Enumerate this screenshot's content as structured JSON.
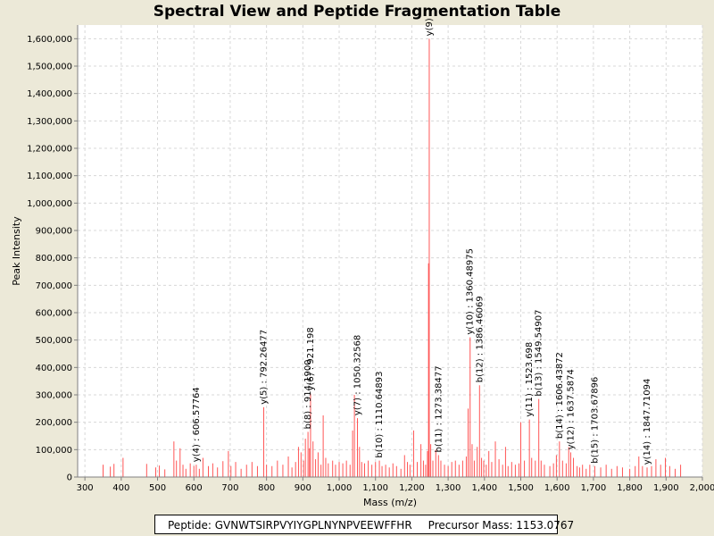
{
  "chart_data": {
    "type": "bar",
    "title": "Spectral View and Peptide Fragmentation Table",
    "xlabel": "Mass (m/z)",
    "ylabel": "Peak Intensity",
    "xlim": [
      280,
      2000
    ],
    "ylim": [
      0,
      1650000
    ],
    "x_ticks": [
      300,
      400,
      500,
      600,
      700,
      800,
      900,
      1000,
      1100,
      1200,
      1300,
      1400,
      1500,
      1600,
      1700,
      1800,
      1900,
      2000
    ],
    "x_tick_labels": [
      "300",
      "400",
      "500",
      "600",
      "700",
      "800",
      "900",
      "1,000",
      "1,100",
      "1,200",
      "1,300",
      "1,400",
      "1,500",
      "1,600",
      "1,700",
      "1,800",
      "1,900",
      "2,000"
    ],
    "y_ticks": [
      0,
      100000,
      200000,
      300000,
      400000,
      500000,
      600000,
      700000,
      800000,
      900000,
      1000000,
      1100000,
      1200000,
      1300000,
      1400000,
      1500000,
      1600000
    ],
    "y_tick_labels": [
      "0",
      "100,000",
      "200,000",
      "300,000",
      "400,000",
      "500,000",
      "600,000",
      "700,000",
      "800,000",
      "900,000",
      "1,000,000",
      "1,100,000",
      "1,200,000",
      "1,300,000",
      "1,400,000",
      "1,500,000",
      "1,600,000"
    ],
    "grid": true,
    "series": [
      {
        "name": "spectrum",
        "color": "#ff5555",
        "peaks": [
          [
            350,
            45000
          ],
          [
            370,
            38000
          ],
          [
            380,
            48000
          ],
          [
            405,
            70000
          ],
          [
            470,
            48000
          ],
          [
            495,
            35000
          ],
          [
            505,
            42000
          ],
          [
            520,
            28000
          ],
          [
            545,
            130000
          ],
          [
            552,
            60000
          ],
          [
            562,
            105000
          ],
          [
            570,
            45000
          ],
          [
            578,
            30000
          ],
          [
            590,
            50000
          ],
          [
            600,
            40000
          ],
          [
            606.58,
            45000
          ],
          [
            615,
            30000
          ],
          [
            625,
            70000
          ],
          [
            640,
            40000
          ],
          [
            652,
            50000
          ],
          [
            665,
            35000
          ],
          [
            680,
            58000
          ],
          [
            695,
            95000
          ],
          [
            702,
            40000
          ],
          [
            715,
            55000
          ],
          [
            730,
            30000
          ],
          [
            745,
            45000
          ],
          [
            760,
            55000
          ],
          [
            775,
            40000
          ],
          [
            792.26,
            255000
          ],
          [
            800,
            45000
          ],
          [
            815,
            40000
          ],
          [
            830,
            60000
          ],
          [
            845,
            45000
          ],
          [
            860,
            75000
          ],
          [
            870,
            35000
          ],
          [
            880,
            55000
          ],
          [
            888,
            110000
          ],
          [
            895,
            90000
          ],
          [
            902,
            60000
          ],
          [
            907,
            140000
          ],
          [
            914.19,
            165000
          ],
          [
            918,
            105000
          ],
          [
            921.2,
            305000
          ],
          [
            928,
            130000
          ],
          [
            935,
            65000
          ],
          [
            942,
            90000
          ],
          [
            950,
            45000
          ],
          [
            956,
            225000
          ],
          [
            963,
            70000
          ],
          [
            970,
            50000
          ],
          [
            982,
            60000
          ],
          [
            990,
            45000
          ],
          [
            1000,
            55000
          ],
          [
            1010,
            50000
          ],
          [
            1020,
            60000
          ],
          [
            1030,
            45000
          ],
          [
            1037,
            170000
          ],
          [
            1042,
            300000
          ],
          [
            1050.33,
            215000
          ],
          [
            1056,
            110000
          ],
          [
            1062,
            55000
          ],
          [
            1070,
            50000
          ],
          [
            1080,
            60000
          ],
          [
            1090,
            45000
          ],
          [
            1100,
            55000
          ],
          [
            1110.65,
            60000
          ],
          [
            1118,
            40000
          ],
          [
            1128,
            45000
          ],
          [
            1138,
            35000
          ],
          [
            1148,
            50000
          ],
          [
            1158,
            40000
          ],
          [
            1170,
            30000
          ],
          [
            1180,
            80000
          ],
          [
            1188,
            55000
          ],
          [
            1195,
            45000
          ],
          [
            1205,
            170000
          ],
          [
            1215,
            55000
          ],
          [
            1225,
            120000
          ],
          [
            1232,
            60000
          ],
          [
            1238,
            45000
          ],
          [
            1243,
            95000
          ],
          [
            1246,
            780000
          ],
          [
            1248,
            1600000
          ],
          [
            1252,
            120000
          ],
          [
            1258,
            60000
          ],
          [
            1266,
            100000
          ],
          [
            1273.38,
            80000
          ],
          [
            1280,
            60000
          ],
          [
            1290,
            45000
          ],
          [
            1300,
            40000
          ],
          [
            1310,
            55000
          ],
          [
            1320,
            60000
          ],
          [
            1330,
            45000
          ],
          [
            1340,
            60000
          ],
          [
            1350,
            75000
          ],
          [
            1355,
            250000
          ],
          [
            1360.49,
            510000
          ],
          [
            1366,
            120000
          ],
          [
            1372,
            60000
          ],
          [
            1380,
            110000
          ],
          [
            1386.46,
            335000
          ],
          [
            1392,
            70000
          ],
          [
            1398,
            60000
          ],
          [
            1405,
            45000
          ],
          [
            1412,
            95000
          ],
          [
            1420,
            55000
          ],
          [
            1430,
            130000
          ],
          [
            1440,
            65000
          ],
          [
            1450,
            45000
          ],
          [
            1458,
            110000
          ],
          [
            1465,
            40000
          ],
          [
            1475,
            55000
          ],
          [
            1485,
            45000
          ],
          [
            1495,
            50000
          ],
          [
            1500,
            200000
          ],
          [
            1510,
            60000
          ],
          [
            1523.7,
            210000
          ],
          [
            1530,
            70000
          ],
          [
            1540,
            60000
          ],
          [
            1549.55,
            285000
          ],
          [
            1556,
            60000
          ],
          [
            1565,
            45000
          ],
          [
            1580,
            40000
          ],
          [
            1590,
            50000
          ],
          [
            1598,
            80000
          ],
          [
            1606.44,
            130000
          ],
          [
            1615,
            60000
          ],
          [
            1625,
            50000
          ],
          [
            1632,
            110000
          ],
          [
            1637.59,
            90000
          ],
          [
            1645,
            70000
          ],
          [
            1655,
            40000
          ],
          [
            1662,
            35000
          ],
          [
            1670,
            45000
          ],
          [
            1680,
            30000
          ],
          [
            1690,
            45000
          ],
          [
            1703.68,
            40000
          ],
          [
            1720,
            35000
          ],
          [
            1735,
            45000
          ],
          [
            1750,
            30000
          ],
          [
            1765,
            40000
          ],
          [
            1780,
            35000
          ],
          [
            1800,
            30000
          ],
          [
            1815,
            40000
          ],
          [
            1825,
            75000
          ],
          [
            1835,
            40000
          ],
          [
            1847.71,
            35000
          ],
          [
            1860,
            40000
          ],
          [
            1872,
            65000
          ],
          [
            1885,
            45000
          ],
          [
            1898,
            70000
          ],
          [
            1910,
            40000
          ],
          [
            1925,
            30000
          ],
          [
            1940,
            45000
          ]
        ]
      }
    ],
    "annotations": [
      {
        "mz": 606.58,
        "y": 45000,
        "label": "y(4) : 606.57764"
      },
      {
        "mz": 792.26,
        "y": 255000,
        "label": "y(5) : 792.26477"
      },
      {
        "mz": 914.19,
        "y": 165000,
        "label": "b(8) : 914.1900"
      },
      {
        "mz": 921.2,
        "y": 305000,
        "label": "y(6) : 921.198"
      },
      {
        "mz": 1050.33,
        "y": 215000,
        "label": "y(7) : 1050.32568"
      },
      {
        "mz": 1110.65,
        "y": 60000,
        "label": "b(10) : 1110.64893"
      },
      {
        "mz": 1248,
        "y": 1600000,
        "label": "y(9)"
      },
      {
        "mz": 1273.38,
        "y": 80000,
        "label": "b(11) : 1273.38477"
      },
      {
        "mz": 1360.49,
        "y": 510000,
        "label": "y(10) : 1360.48975"
      },
      {
        "mz": 1386.46,
        "y": 335000,
        "label": "b(12) : 1386.46069"
      },
      {
        "mz": 1523.7,
        "y": 210000,
        "label": "y(11) : 1523.698"
      },
      {
        "mz": 1549.55,
        "y": 285000,
        "label": "b(13) : 1549.54907"
      },
      {
        "mz": 1606.44,
        "y": 130000,
        "label": "b(14) : 1606.43872"
      },
      {
        "mz": 1637.59,
        "y": 90000,
        "label": "y(12) : 1637.5874"
      },
      {
        "mz": 1703.68,
        "y": 40000,
        "label": "b(15) : 1703.67896"
      },
      {
        "mz": 1847.71,
        "y": 35000,
        "label": "y(14) : 1847.71094"
      }
    ]
  },
  "legend": {
    "peptide": "Peptide: GVNWTSIRPVYIYGPLNYNPVEEWFFHR",
    "precursor": "Precursor Mass: 1153.0767"
  }
}
